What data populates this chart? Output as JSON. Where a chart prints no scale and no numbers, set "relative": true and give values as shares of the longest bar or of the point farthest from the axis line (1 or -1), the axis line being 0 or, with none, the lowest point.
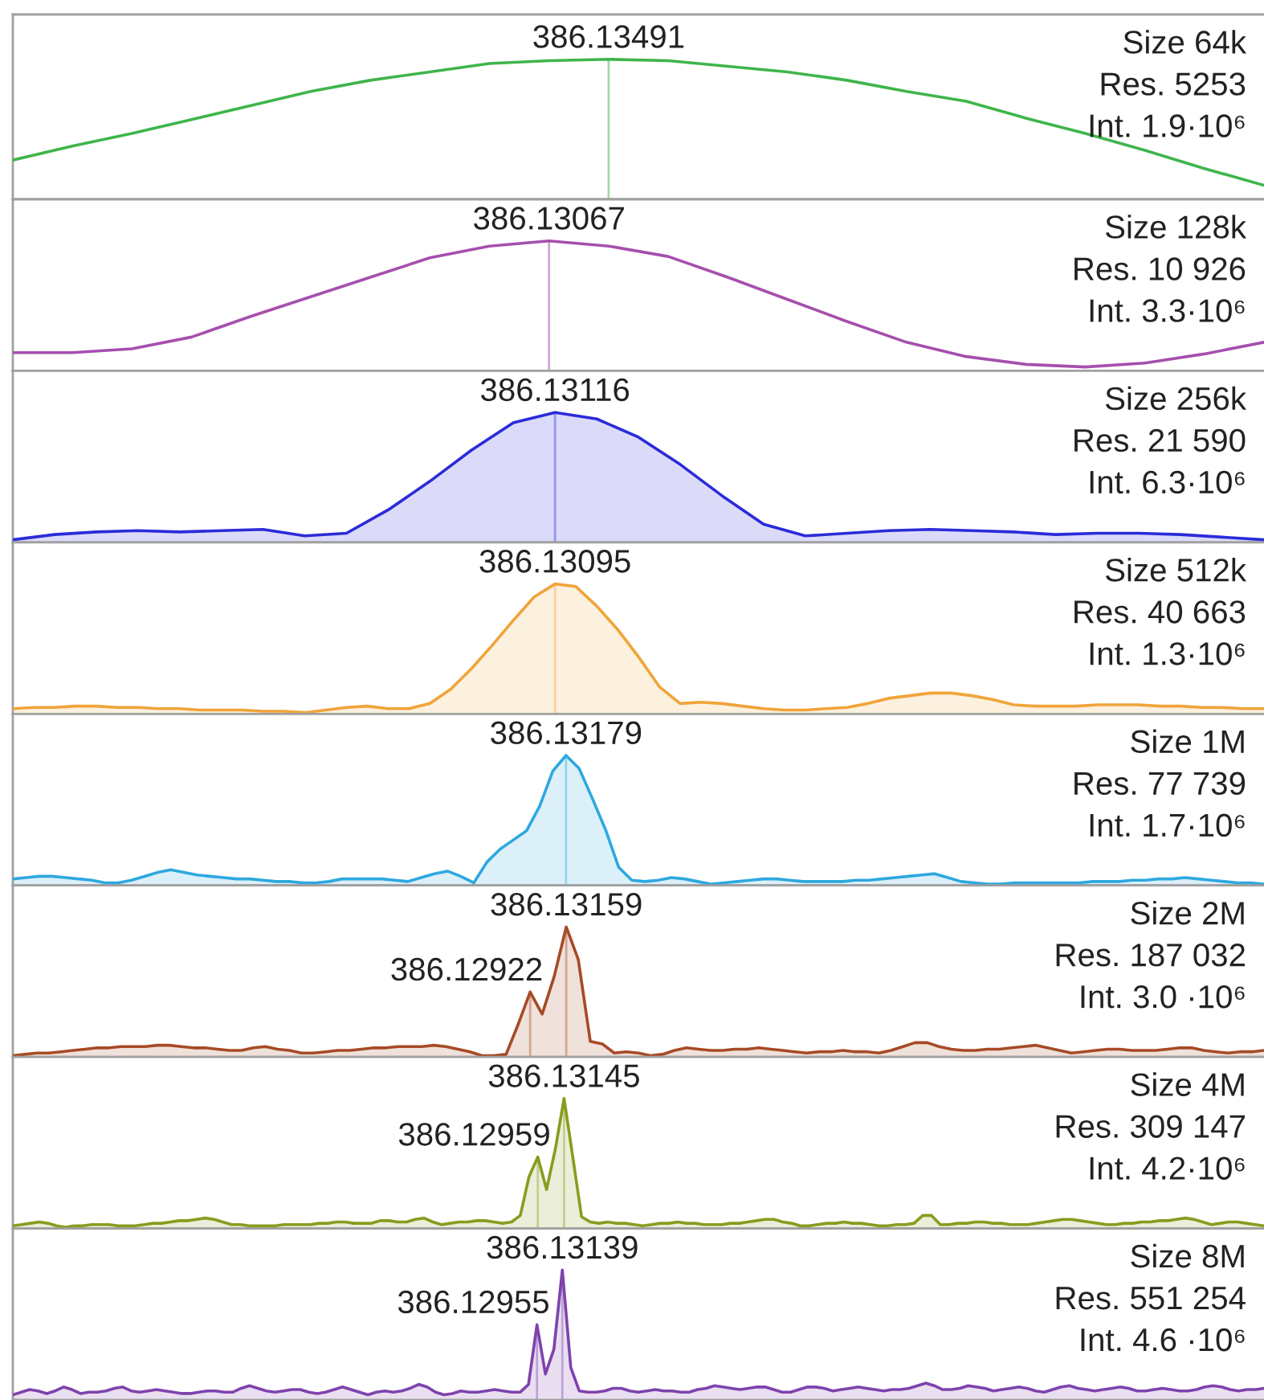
{
  "chart_data": [
    {
      "type": "line",
      "relative": true,
      "title": "Size 64k",
      "subtitle": "Res. 5253\nInt. 1.9·10⁶",
      "categories": [
        null,
        null,
        null,
        null,
        null,
        null,
        null,
        null,
        null,
        null,
        null,
        null,
        null,
        null,
        null,
        null,
        null,
        null,
        null,
        null,
        null,
        null
      ],
      "series": [
        {
          "color": "#3fb54b",
          "values": [
            0.28,
            0.38,
            0.47,
            0.57,
            0.67,
            0.77,
            0.85,
            0.91,
            0.97,
            0.99,
            1.0,
            0.99,
            0.95,
            0.91,
            0.85,
            0.77,
            0.7,
            0.58,
            0.47,
            0.35,
            0.22,
            0.1
          ]
        }
      ],
      "annotations": [
        {
          "text": "386.13491",
          "y": 1.0
        }
      ]
    },
    {
      "type": "line",
      "relative": true,
      "title": "Size 128k",
      "subtitle": "Res. 10 926\nInt. 3.3·10⁶",
      "categories": [
        null,
        null,
        null,
        null,
        null,
        null,
        null,
        null,
        null,
        null,
        null,
        null,
        null,
        null,
        null,
        null,
        null,
        null,
        null,
        null,
        null,
        null
      ],
      "series": [
        {
          "color": "#a64fae",
          "values": [
            0.14,
            0.14,
            0.17,
            0.26,
            0.42,
            0.57,
            0.72,
            0.87,
            0.96,
            1.0,
            0.96,
            0.88,
            0.72,
            0.55,
            0.38,
            0.22,
            0.11,
            0.05,
            0.03,
            0.06,
            0.13,
            0.22
          ]
        }
      ],
      "annotations": [
        {
          "text": "386.13067",
          "y": 1.0
        }
      ]
    },
    {
      "type": "area",
      "relative": true,
      "title": "Size 256k",
      "subtitle": "Res. 21 590\nInt. 6.3·10⁶",
      "categories": [
        null,
        null,
        null,
        null,
        null,
        null,
        null,
        null,
        null,
        null,
        null,
        null,
        null,
        null,
        null,
        null,
        null,
        null,
        null,
        null,
        null,
        null,
        null,
        null,
        null,
        null,
        null,
        null,
        null,
        null,
        null
      ],
      "series": [
        {
          "color": "#2b2bd9",
          "values": [
            0.02,
            0.06,
            0.08,
            0.09,
            0.08,
            0.09,
            0.1,
            0.05,
            0.07,
            0.25,
            0.47,
            0.71,
            0.92,
            1.0,
            0.95,
            0.81,
            0.6,
            0.36,
            0.14,
            0.05,
            0.07,
            0.09,
            0.1,
            0.09,
            0.08,
            0.06,
            0.07,
            0.07,
            0.06,
            0.04,
            0.02
          ]
        }
      ],
      "annotations": [
        {
          "text": "386.13116",
          "y": 1.0
        }
      ]
    },
    {
      "type": "area",
      "relative": true,
      "title": "Size 512k",
      "subtitle": "Res. 40 663\nInt. 1.3·10⁶",
      "categories": [
        null,
        null,
        null,
        null,
        null,
        null,
        null,
        null,
        null,
        null,
        null,
        null,
        null,
        null,
        null,
        null,
        null,
        null,
        null,
        null,
        null,
        null,
        null,
        null,
        null,
        null,
        null,
        null,
        null,
        null,
        null,
        null,
        null,
        null,
        null,
        null,
        null,
        null,
        null,
        null,
        null,
        null,
        null,
        null,
        null,
        null,
        null,
        null,
        null,
        null,
        null,
        null,
        null,
        null,
        null,
        null,
        null,
        null,
        null,
        null,
        null
      ],
      "series": [
        {
          "color": "#f0a43a",
          "values": [
            0.04,
            0.05,
            0.05,
            0.06,
            0.06,
            0.05,
            0.05,
            0.04,
            0.04,
            0.03,
            0.03,
            0.03,
            0.02,
            0.02,
            0.01,
            0.03,
            0.05,
            0.06,
            0.04,
            0.04,
            0.08,
            0.19,
            0.35,
            0.53,
            0.72,
            0.9,
            1.0,
            0.98,
            0.83,
            0.65,
            0.44,
            0.21,
            0.08,
            0.09,
            0.08,
            0.06,
            0.04,
            0.03,
            0.03,
            0.04,
            0.05,
            0.08,
            0.12,
            0.14,
            0.16,
            0.16,
            0.14,
            0.11,
            0.07,
            0.06,
            0.06,
            0.06,
            0.07,
            0.07,
            0.07,
            0.06,
            0.06,
            0.05,
            0.05,
            0.04,
            0.04
          ]
        }
      ],
      "annotations": [
        {
          "text": "386.13095",
          "y": 1.0
        }
      ]
    },
    {
      "type": "area",
      "relative": true,
      "title": "Size 1M",
      "subtitle": "Res. 77 739\nInt. 1.7·10⁶",
      "categories": [
        null,
        null,
        null,
        null,
        null,
        null,
        null,
        null,
        null,
        null,
        null,
        null,
        null,
        null,
        null,
        null,
        null,
        null,
        null,
        null,
        null,
        null,
        null,
        null,
        null,
        null,
        null,
        null,
        null,
        null,
        null,
        null,
        null,
        null,
        null,
        null,
        null,
        null,
        null,
        null,
        null,
        null,
        null,
        null,
        null,
        null,
        null,
        null,
        null,
        null,
        null,
        null,
        null,
        null,
        null,
        null,
        null,
        null,
        null,
        null,
        null,
        null,
        null,
        null,
        null,
        null,
        null,
        null,
        null,
        null,
        null,
        null,
        null,
        null,
        null,
        null,
        null,
        null,
        null,
        null,
        null,
        null,
        null,
        null,
        null,
        null,
        null,
        null,
        null,
        null,
        null,
        null,
        null,
        null,
        null,
        null
      ],
      "series": [
        {
          "color": "#2ea8df",
          "values": [
            0.05,
            0.06,
            0.07,
            0.07,
            0.06,
            0.05,
            0.04,
            0.02,
            0.02,
            0.04,
            0.07,
            0.1,
            0.12,
            0.1,
            0.08,
            0.07,
            0.06,
            0.05,
            0.05,
            0.04,
            0.03,
            0.03,
            0.02,
            0.02,
            0.03,
            0.05,
            0.05,
            0.05,
            0.05,
            0.04,
            0.03,
            0.06,
            0.09,
            0.11,
            0.07,
            0.02,
            0.18,
            0.28,
            0.35,
            0.42,
            0.61,
            0.88,
            1.0,
            0.9,
            0.67,
            0.43,
            0.14,
            0.04,
            0.03,
            0.04,
            0.06,
            0.05,
            0.03,
            0.01,
            0.02,
            0.03,
            0.04,
            0.05,
            0.05,
            0.04,
            0.03,
            0.03,
            0.03,
            0.03,
            0.04,
            0.04,
            0.05,
            0.06,
            0.07,
            0.08,
            0.09,
            0.06,
            0.03,
            0.02,
            0.01,
            0.01,
            0.02,
            0.02,
            0.02,
            0.02,
            0.02,
            0.02,
            0.03,
            0.03,
            0.03,
            0.04,
            0.04,
            0.05,
            0.05,
            0.06,
            0.05,
            0.04,
            0.03,
            0.02,
            0.02,
            0.01
          ]
        }
      ],
      "annotations": [
        {
          "text": "386.13179",
          "y": 1.0
        }
      ]
    },
    {
      "type": "area",
      "relative": true,
      "title": "Size 2M",
      "subtitle": "Res. 187 032\nInt. 3.0 ·10⁶",
      "categories": [
        null,
        null,
        null,
        null,
        null,
        null,
        null,
        null,
        null,
        null,
        null,
        null,
        null,
        null,
        null,
        null,
        null,
        null,
        null,
        null,
        null,
        null,
        null,
        null,
        null,
        null,
        null,
        null,
        null,
        null,
        null,
        null,
        null,
        null,
        null,
        null,
        null,
        null,
        null,
        null,
        null,
        null,
        null,
        null,
        null,
        null,
        null,
        null,
        null,
        null,
        null,
        null,
        null,
        null,
        null,
        null,
        null,
        null,
        null,
        null,
        null,
        null,
        null,
        null,
        null,
        null,
        null,
        null,
        null,
        null,
        null,
        null,
        null,
        null,
        null,
        null,
        null,
        null,
        null,
        null,
        null,
        null,
        null,
        null,
        null,
        null,
        null,
        null,
        null,
        null,
        null,
        null,
        null,
        null,
        null,
        null,
        null,
        null,
        null,
        null,
        null,
        null,
        null,
        null,
        null
      ],
      "series": [
        {
          "color": "#a64b26",
          "values": [
            0.01,
            0.02,
            0.03,
            0.03,
            0.04,
            0.05,
            0.06,
            0.07,
            0.07,
            0.08,
            0.08,
            0.08,
            0.09,
            0.09,
            0.08,
            0.07,
            0.07,
            0.06,
            0.05,
            0.05,
            0.07,
            0.08,
            0.06,
            0.05,
            0.03,
            0.03,
            0.04,
            0.05,
            0.05,
            0.06,
            0.07,
            0.07,
            0.08,
            0.08,
            0.08,
            0.09,
            0.08,
            0.06,
            0.04,
            0.01,
            0.01,
            0.02,
            0.25,
            0.5,
            0.33,
            0.62,
            1.0,
            0.75,
            0.12,
            0.1,
            0.03,
            0.04,
            0.03,
            0.01,
            0.02,
            0.05,
            0.07,
            0.06,
            0.05,
            0.05,
            0.06,
            0.06,
            0.07,
            0.06,
            0.05,
            0.04,
            0.03,
            0.04,
            0.04,
            0.05,
            0.04,
            0.04,
            0.03,
            0.05,
            0.08,
            0.11,
            0.11,
            0.08,
            0.06,
            0.05,
            0.05,
            0.06,
            0.06,
            0.07,
            0.08,
            0.09,
            0.07,
            0.05,
            0.03,
            0.04,
            0.05,
            0.06,
            0.06,
            0.05,
            0.05,
            0.05,
            0.06,
            0.07,
            0.07,
            0.05,
            0.04,
            0.03,
            0.04,
            0.04,
            0.05
          ]
        }
      ],
      "annotations": [
        {
          "text": "386.13159",
          "y": 1.0
        },
        "386.12922"
      ]
    },
    {
      "type": "area",
      "relative": true,
      "title": "Size 4M",
      "subtitle": "Res. 309 147\nInt. 4.2·10⁶",
      "categories": [
        null,
        null,
        null,
        null,
        null,
        null,
        null,
        null,
        null,
        null,
        null,
        null,
        null,
        null,
        null,
        null,
        null,
        null,
        null,
        null,
        null,
        null,
        null,
        null,
        null,
        null,
        null,
        null,
        null,
        null,
        null,
        null,
        null,
        null,
        null,
        null,
        null,
        null,
        null,
        null,
        null,
        null,
        null,
        null,
        null,
        null,
        null,
        null,
        null,
        null,
        null,
        null,
        null,
        null,
        null,
        null,
        null,
        null,
        null,
        null,
        null,
        null,
        null,
        null,
        null,
        null,
        null,
        null,
        null,
        null,
        null,
        null,
        null,
        null,
        null,
        null,
        null,
        null,
        null,
        null,
        null,
        null,
        null,
        null,
        null,
        null,
        null,
        null,
        null,
        null,
        null,
        null,
        null,
        null,
        null,
        null,
        null,
        null,
        null,
        null,
        null,
        null,
        null,
        null,
        null,
        null,
        null,
        null,
        null,
        null,
        null,
        null,
        null,
        null,
        null,
        null,
        null,
        null,
        null,
        null,
        null,
        null,
        null,
        null,
        null,
        null,
        null,
        null,
        null,
        null,
        null,
        null,
        null,
        null,
        null,
        null,
        null,
        null,
        null,
        null,
        null,
        null,
        null,
        null
      ],
      "series": [
        {
          "color": "#8a9b1e",
          "values": [
            0.02,
            0.03,
            0.04,
            0.05,
            0.04,
            0.02,
            0.01,
            0.02,
            0.02,
            0.03,
            0.03,
            0.03,
            0.02,
            0.02,
            0.02,
            0.03,
            0.04,
            0.04,
            0.05,
            0.06,
            0.06,
            0.07,
            0.08,
            0.07,
            0.05,
            0.03,
            0.03,
            0.02,
            0.02,
            0.02,
            0.02,
            0.03,
            0.03,
            0.03,
            0.03,
            0.04,
            0.04,
            0.05,
            0.05,
            0.04,
            0.04,
            0.04,
            0.06,
            0.06,
            0.05,
            0.05,
            0.07,
            0.08,
            0.05,
            0.03,
            0.04,
            0.05,
            0.05,
            0.06,
            0.06,
            0.05,
            0.04,
            0.05,
            0.1,
            0.4,
            0.55,
            0.3,
            0.61,
            1.0,
            0.55,
            0.09,
            0.05,
            0.04,
            0.05,
            0.04,
            0.04,
            0.03,
            0.02,
            0.03,
            0.04,
            0.04,
            0.05,
            0.04,
            0.04,
            0.03,
            0.03,
            0.03,
            0.04,
            0.04,
            0.05,
            0.06,
            0.07,
            0.07,
            0.05,
            0.04,
            0.02,
            0.02,
            0.03,
            0.04,
            0.04,
            0.05,
            0.04,
            0.04,
            0.03,
            0.02,
            0.02,
            0.03,
            0.03,
            0.04,
            0.1,
            0.1,
            0.03,
            0.03,
            0.04,
            0.04,
            0.05,
            0.05,
            0.04,
            0.04,
            0.03,
            0.03,
            0.03,
            0.04,
            0.05,
            0.06,
            0.07,
            0.07,
            0.06,
            0.05,
            0.04,
            0.03,
            0.03,
            0.04,
            0.04,
            0.05,
            0.05,
            0.06,
            0.06,
            0.07,
            0.08,
            0.07,
            0.05,
            0.03,
            0.04,
            0.05,
            0.05,
            0.04,
            0.03,
            0.02
          ]
        }
      ],
      "annotations": [
        {
          "text": "386.13145",
          "y": 1.0
        },
        "386.12959"
      ]
    },
    {
      "type": "area",
      "relative": true,
      "title": "Size 8M",
      "subtitle": "Res. 551 254\nInt. 4.6 ·10⁶",
      "categories": [
        null,
        null,
        null,
        null,
        null,
        null,
        null,
        null,
        null,
        null,
        null,
        null,
        null,
        null,
        null,
        null,
        null,
        null,
        null,
        null,
        null,
        null,
        null,
        null,
        null,
        null,
        null,
        null,
        null,
        null,
        null,
        null,
        null,
        null,
        null,
        null,
        null,
        null,
        null,
        null,
        null,
        null,
        null,
        null,
        null,
        null,
        null,
        null,
        null,
        null,
        null,
        null,
        null,
        null,
        null,
        null,
        null,
        null,
        null,
        null,
        null,
        null,
        null,
        null,
        null,
        null,
        null,
        null,
        null,
        null,
        null,
        null,
        null,
        null,
        null,
        null,
        null,
        null,
        null,
        null,
        null,
        null,
        null,
        null,
        null,
        null,
        null,
        null,
        null,
        null,
        null,
        null,
        null,
        null,
        null,
        null,
        null,
        null,
        null,
        null,
        null,
        null,
        null,
        null,
        null,
        null,
        null,
        null,
        null,
        null,
        null,
        null,
        null,
        null,
        null,
        null,
        null,
        null,
        null,
        null,
        null,
        null,
        null,
        null,
        null,
        null,
        null,
        null,
        null,
        null,
        null,
        null,
        null,
        null,
        null,
        null,
        null,
        null,
        null,
        null,
        null,
        null,
        null,
        null,
        null,
        null,
        null,
        null,
        null
      ],
      "series": [
        {
          "color": "#7e43ad",
          "values": [
            0.04,
            0.06,
            0.08,
            0.07,
            0.05,
            0.07,
            0.1,
            0.08,
            0.05,
            0.06,
            0.06,
            0.07,
            0.09,
            0.1,
            0.07,
            0.06,
            0.07,
            0.08,
            0.07,
            0.06,
            0.05,
            0.05,
            0.06,
            0.07,
            0.07,
            0.06,
            0.06,
            0.09,
            0.11,
            0.09,
            0.07,
            0.06,
            0.07,
            0.08,
            0.08,
            0.06,
            0.05,
            0.06,
            0.08,
            0.1,
            0.08,
            0.06,
            0.04,
            0.06,
            0.07,
            0.06,
            0.07,
            0.09,
            0.12,
            0.1,
            0.06,
            0.04,
            0.05,
            0.07,
            0.06,
            0.06,
            0.07,
            0.08,
            0.07,
            0.06,
            0.06,
            0.12,
            0.58,
            0.2,
            0.39,
            1.0,
            0.25,
            0.07,
            0.06,
            0.06,
            0.07,
            0.09,
            0.09,
            0.07,
            0.06,
            0.07,
            0.08,
            0.07,
            0.07,
            0.06,
            0.06,
            0.08,
            0.09,
            0.11,
            0.1,
            0.09,
            0.08,
            0.09,
            0.1,
            0.1,
            0.08,
            0.06,
            0.06,
            0.08,
            0.1,
            0.1,
            0.09,
            0.07,
            0.08,
            0.09,
            0.1,
            0.09,
            0.08,
            0.07,
            0.08,
            0.08,
            0.09,
            0.11,
            0.13,
            0.11,
            0.08,
            0.08,
            0.09,
            0.11,
            0.1,
            0.09,
            0.07,
            0.08,
            0.09,
            0.1,
            0.09,
            0.07,
            0.06,
            0.08,
            0.1,
            0.11,
            0.09,
            0.08,
            0.07,
            0.08,
            0.09,
            0.1,
            0.09,
            0.07,
            0.07,
            0.08,
            0.09,
            0.08,
            0.07,
            0.07,
            0.08,
            0.1,
            0.11,
            0.1,
            0.08,
            0.07,
            0.08,
            0.08,
            0.09
          ]
        }
      ],
      "annotations": [
        {
          "text": "386.13139",
          "y": 1.0
        },
        "386.12955"
      ]
    }
  ]
}
